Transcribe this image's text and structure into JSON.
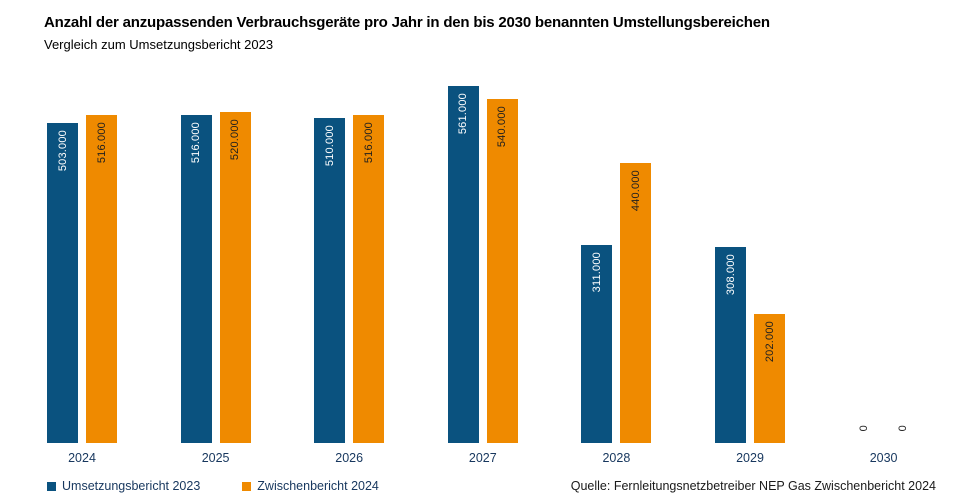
{
  "header": {
    "title": "Anzahl der anzupassenden Verbrauchsgeräte pro Jahr in den bis 2030 benannten Umstellungsbereichen",
    "subtitle": "Vergleich zum Umsetzungsbericht 2023"
  },
  "source": "Quelle: Fernleitungsnetzbetreiber NEP Gas Zwischenbericht 2024",
  "chart_data": {
    "type": "bar",
    "title": "Anzahl der anzupassenden Verbrauchsgeräte pro Jahr in den bis 2030 benannten Umstellungsbereichen",
    "subtitle": "Vergleich zum Umsetzungsbericht 2023",
    "categories": [
      "2024",
      "2025",
      "2026",
      "2027",
      "2028",
      "2029",
      "2030"
    ],
    "series": [
      {
        "name": "Umsetzungsbericht 2023",
        "color": "#0a527f",
        "label_color": "#ffffff",
        "values": [
          503000,
          516000,
          510000,
          561000,
          311000,
          308000,
          0
        ],
        "labels": [
          "503.000",
          "516.000",
          "510.000",
          "561.000",
          "311.000",
          "308.000",
          "0"
        ]
      },
      {
        "name": "Zwischenbericht 2024",
        "color": "#ef8a00",
        "label_color": "#1f1f1f",
        "values": [
          516000,
          520000,
          516000,
          540000,
          440000,
          202000,
          0
        ],
        "labels": [
          "516.000",
          "520.000",
          "516.000",
          "540.000",
          "440.000",
          "202.000",
          "0"
        ]
      }
    ],
    "xlabel": "",
    "ylabel": "",
    "ylim": [
      0,
      561000
    ],
    "grid": false,
    "axis_lines": false,
    "legend_position": "bottom-left",
    "zero_label_color": "#1f1f1f"
  }
}
